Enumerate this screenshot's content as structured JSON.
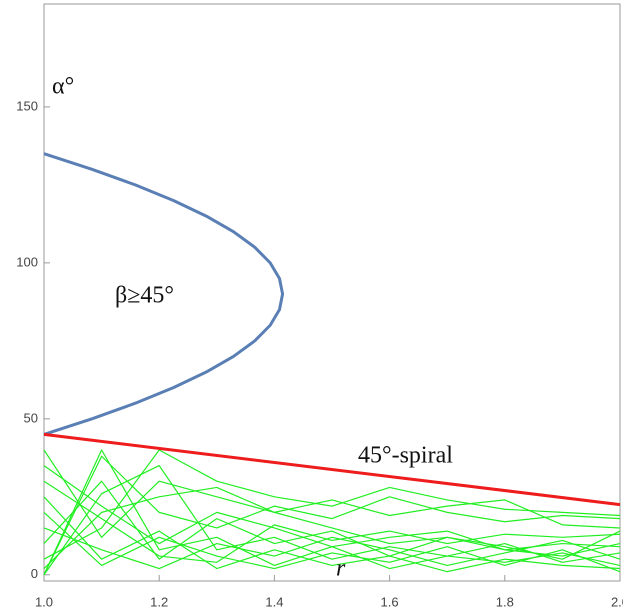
{
  "chart_data": {
    "type": "line",
    "xlim": [
      1.0,
      2.0
    ],
    "ylim": [
      -2,
      183
    ],
    "xticks": [
      {
        "value": 1.0,
        "label": "1.0"
      },
      1.2,
      1.4,
      1.6,
      1.8,
      {
        "value": 2.0,
        "label": "2.0"
      }
    ],
    "yticks": [
      0,
      50,
      100,
      150
    ],
    "annotations": [
      "α°",
      "β≥45°",
      "45°-spiral",
      "r"
    ],
    "series": [
      {
        "color": "#5a7fb5",
        "x": [
          1.0,
          1.0833,
          1.1585,
          1.2247,
          1.2817,
          1.3289,
          1.366,
          1.3927,
          1.4088,
          1.4142,
          1.4088,
          1.3927,
          1.366,
          1.3289,
          1.2817,
          1.2247,
          1.1585,
          1.0833,
          1.0
        ],
        "values": [
          45,
          50,
          55,
          60,
          65,
          70,
          75,
          80,
          85,
          90,
          95,
          100,
          105,
          110,
          115,
          120,
          125,
          130,
          135
        ]
      },
      {
        "color": "#ee1c1c",
        "x": [
          1.0,
          2.0
        ],
        "values": [
          45,
          22.5
        ]
      },
      {
        "color": "#22ee22",
        "x": [
          1.0,
          1.1,
          1.2,
          1.3,
          1.4,
          1.5,
          1.6,
          1.7,
          1.8,
          1.9,
          2.0
        ],
        "values": [
          0,
          38,
          20,
          15,
          22,
          18,
          25,
          20,
          17,
          19,
          18
        ]
      },
      {
        "color": "#22ee22",
        "x": [
          1.0,
          1.1,
          1.2,
          1.3,
          1.4,
          1.5,
          1.6,
          1.7,
          1.8,
          1.9,
          2.0
        ],
        "values": [
          40,
          12,
          30,
          25,
          20,
          15,
          10,
          12,
          8,
          10,
          9
        ]
      },
      {
        "color": "#22ee22",
        "x": [
          1.0,
          1.1,
          1.2,
          1.3,
          1.4,
          1.5,
          1.6,
          1.7,
          1.8,
          1.9,
          2.0
        ],
        "values": [
          0,
          26,
          35,
          8,
          12,
          5,
          9,
          6,
          4,
          7,
          3
        ]
      },
      {
        "color": "#22ee22",
        "x": [
          1.0,
          1.1,
          1.2,
          1.3,
          1.4,
          1.5,
          1.6,
          1.7,
          1.8,
          1.9,
          2.0
        ],
        "values": [
          10,
          30,
          5,
          18,
          10,
          14,
          6,
          12,
          9,
          5,
          14
        ]
      },
      {
        "color": "#22ee22",
        "x": [
          1.0,
          1.1,
          1.2,
          1.3,
          1.4,
          1.5,
          1.6,
          1.7,
          1.8,
          1.9,
          2.0
        ],
        "values": [
          2,
          20,
          25,
          28,
          20,
          24,
          19,
          22,
          24,
          16,
          15
        ]
      },
      {
        "color": "#22ee22",
        "x": [
          1.0,
          1.1,
          1.2,
          1.3,
          1.4,
          1.5,
          1.6,
          1.7,
          1.8,
          1.9,
          2.0
        ],
        "values": [
          25,
          5,
          14,
          2,
          8,
          3,
          6,
          1,
          5,
          3,
          2
        ]
      },
      {
        "color": "#22ee22",
        "x": [
          1.0,
          1.1,
          1.2,
          1.3,
          1.4,
          1.5,
          1.6,
          1.7,
          1.8,
          1.9,
          2.0
        ],
        "values": [
          0,
          40,
          8,
          12,
          3,
          9,
          2,
          6,
          10,
          4,
          7
        ]
      },
      {
        "color": "#22ee22",
        "x": [
          1.0,
          1.1,
          1.2,
          1.3,
          1.4,
          1.5,
          1.6,
          1.7,
          1.8,
          1.9,
          2.0
        ],
        "values": [
          15,
          8,
          2,
          10,
          6,
          12,
          8,
          3,
          7,
          11,
          5
        ]
      },
      {
        "color": "#22ee22",
        "x": [
          1.0,
          1.1,
          1.2,
          1.3,
          1.4,
          1.5,
          1.6,
          1.7,
          1.8,
          1.9,
          2.0
        ],
        "values": [
          35,
          22,
          10,
          20,
          15,
          9,
          12,
          14,
          8,
          6,
          10
        ]
      },
      {
        "color": "#22ee22",
        "x": [
          1.0,
          1.1,
          1.2,
          1.3,
          1.4,
          1.5,
          1.6,
          1.7,
          1.8,
          1.9,
          2.0
        ],
        "values": [
          5,
          15,
          40,
          30,
          25,
          22,
          28,
          24,
          21,
          20,
          19
        ]
      },
      {
        "color": "#22ee22",
        "x": [
          1.0,
          1.1,
          1.2,
          1.3,
          1.4,
          1.5,
          1.6,
          1.7,
          1.8,
          1.9,
          2.0
        ],
        "values": [
          20,
          3,
          12,
          6,
          2,
          7,
          4,
          9,
          3,
          8,
          1
        ]
      },
      {
        "color": "#22ee22",
        "x": [
          1.0,
          1.1,
          1.2,
          1.3,
          1.4,
          1.5,
          1.6,
          1.7,
          1.8,
          1.9,
          2.0
        ],
        "values": [
          30,
          18,
          6,
          4,
          16,
          11,
          14,
          10,
          13,
          12,
          13
        ]
      }
    ]
  }
}
